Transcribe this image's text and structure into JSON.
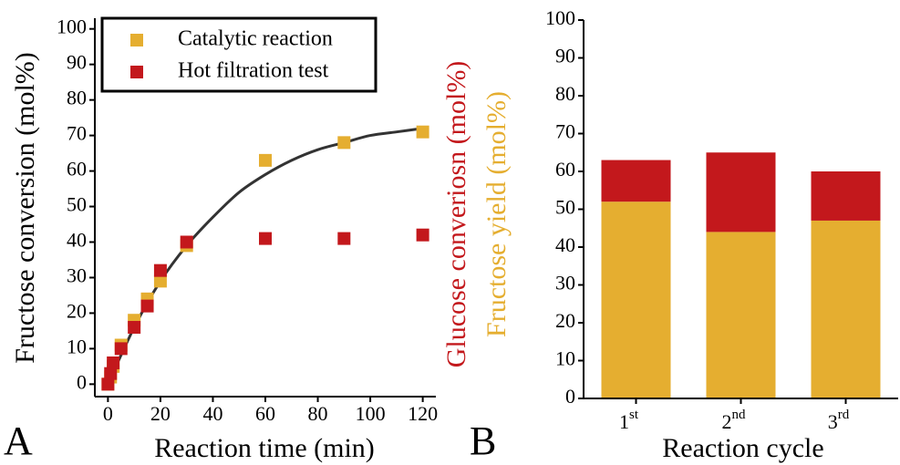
{
  "chart_data": [
    {
      "type": "scatter",
      "panel": "A",
      "xlabel": "Reaction time (min)",
      "ylabel": "Fructose conversion (mol%)",
      "xlim": [
        -5,
        125
      ],
      "xticks": [
        0,
        20,
        40,
        60,
        80,
        100,
        120
      ],
      "ylim": [
        -3.5,
        103
      ],
      "yticks": [
        0,
        10,
        20,
        30,
        40,
        50,
        60,
        70,
        80,
        90,
        100
      ],
      "series": [
        {
          "name": "Catalytic reaction",
          "color": "#e5ae30",
          "x": [
            0,
            1,
            2,
            5,
            10,
            15,
            20,
            30,
            60,
            90,
            120
          ],
          "values": [
            0,
            2,
            5,
            11,
            18,
            24,
            29,
            39,
            63,
            68,
            71
          ]
        },
        {
          "name": "Hot filtration test",
          "color": "#c3181c",
          "x": [
            0,
            1,
            2,
            5,
            10,
            15,
            20,
            30,
            60,
            90,
            120
          ],
          "values": [
            0,
            3,
            6,
            10,
            16,
            22,
            32,
            40,
            41,
            41,
            42
          ]
        }
      ],
      "fit": {
        "color": "#333333",
        "x": [
          0,
          10,
          20,
          30,
          40,
          50,
          60,
          70,
          80,
          90,
          100,
          110,
          120
        ],
        "values": [
          0,
          16,
          29,
          39,
          47,
          54,
          59,
          63,
          66,
          68,
          70,
          71,
          72
        ]
      }
    },
    {
      "type": "stacked_bar",
      "panel": "B",
      "xlabel": "Reaction cycle",
      "ylabels": [
        {
          "text": "Glucose converiosn (mol%)",
          "color": "#c3181c"
        },
        {
          "text": "Fructose yield (mol%)",
          "color": "#e5ae30"
        }
      ],
      "categories": [
        "1st",
        "2nd",
        "3rd"
      ],
      "ylim": [
        0,
        100
      ],
      "yticks": [
        0,
        10,
        20,
        30,
        40,
        50,
        60,
        70,
        80,
        90,
        100
      ],
      "series": [
        {
          "name": "Fructose yield",
          "color": "#e5ae30",
          "values": [
            52,
            44,
            47
          ]
        },
        {
          "name": "Glucose conversion",
          "color": "#c3181c",
          "values": [
            11,
            21,
            13
          ]
        }
      ]
    }
  ]
}
